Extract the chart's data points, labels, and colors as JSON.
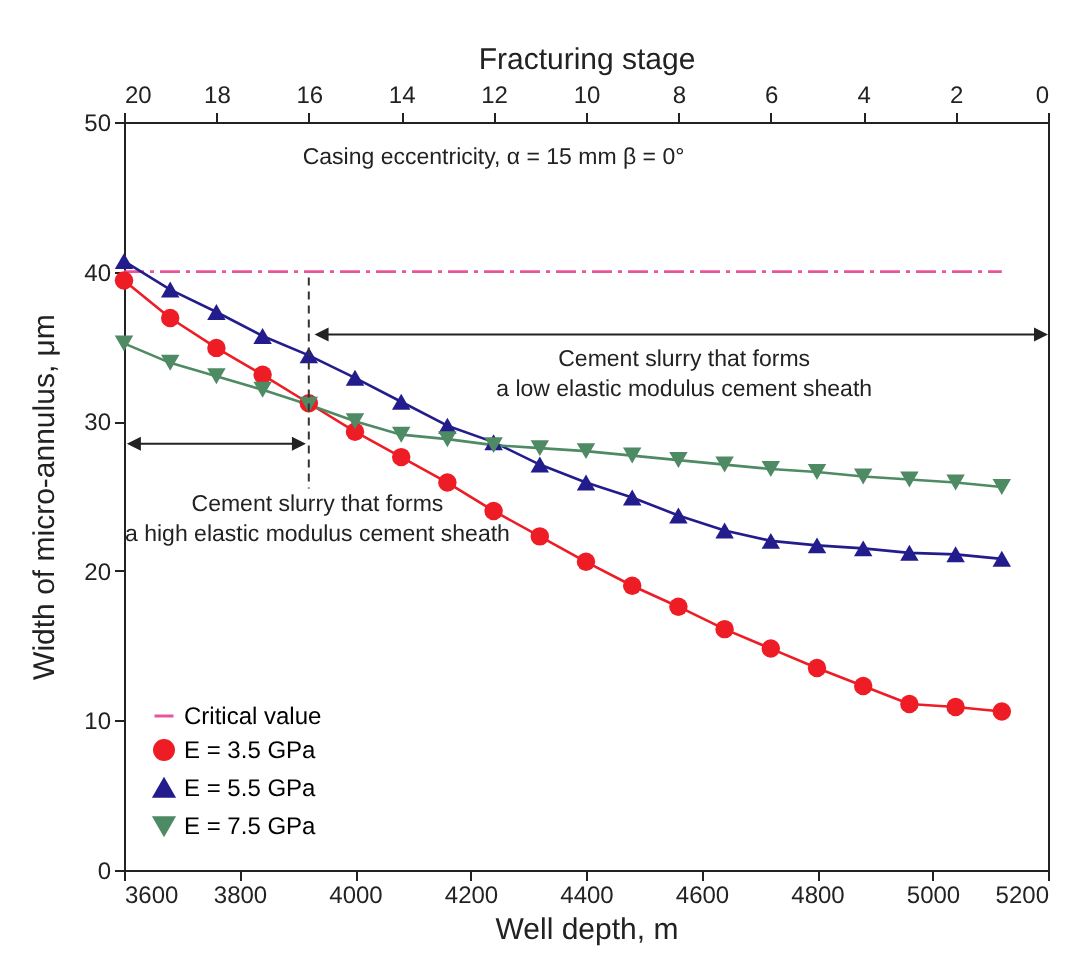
{
  "chart_data": {
    "type": "line",
    "xlabel": "Well depth, m",
    "ylabel": "Width of micro-annulus, μm",
    "x2label": "Fracturing stage",
    "xlim": [
      3600,
      5200
    ],
    "xticks": [
      3600,
      3800,
      4000,
      4200,
      4400,
      4600,
      4800,
      5000,
      5200
    ],
    "ylim": [
      0,
      50
    ],
    "yticks": [
      0,
      10,
      20,
      30,
      40,
      50
    ],
    "x2lim": [
      20,
      0
    ],
    "x2ticks": [
      20,
      18,
      16,
      14,
      12,
      10,
      8,
      6,
      4,
      2,
      0
    ],
    "x": [
      3600,
      3680,
      3760,
      3840,
      3920,
      4000,
      4080,
      4160,
      4240,
      4320,
      4400,
      4480,
      4560,
      4640,
      4720,
      4800,
      4880,
      4960,
      5040,
      5120
    ],
    "grid": false,
    "ref_lines": [
      {
        "axis": "x",
        "value": 3920,
        "color": "#333333",
        "line_style": "dashed"
      }
    ],
    "legend": "bottom left",
    "series": [
      {
        "name": "Critical value",
        "color": "#e8559a",
        "type": "line",
        "marker": "none",
        "line_style": "dashed",
        "x": [
          3600,
          5120
        ],
        "values": [
          40,
          40
        ]
      },
      {
        "name": "E = 3.5 GPa",
        "color": "#ee1c25",
        "marker": "circle",
        "values": [
          39.4,
          36.9,
          34.9,
          33.1,
          31.2,
          29.3,
          27.6,
          25.9,
          24.0,
          22.3,
          20.6,
          19.0,
          17.6,
          16.1,
          14.8,
          13.5,
          12.3,
          11.1,
          10.9,
          10.6
        ]
      },
      {
        "name": "E = 5.5 GPa",
        "color": "#231c8c",
        "marker": "triangle",
        "values": [
          40.7,
          38.8,
          37.3,
          35.7,
          34.4,
          32.9,
          31.3,
          29.7,
          28.6,
          27.1,
          25.9,
          24.9,
          23.7,
          22.7,
          22.0,
          21.7,
          21.5,
          21.2,
          21.1,
          20.8
        ]
      },
      {
        "name": "E = 7.5 GPa",
        "color": "#4e8a63",
        "marker": "triangle-down",
        "values": [
          35.2,
          33.9,
          33.0,
          32.1,
          31.1,
          30.0,
          29.1,
          28.8,
          28.4,
          28.2,
          28.0,
          27.7,
          27.4,
          27.1,
          26.8,
          26.6,
          26.3,
          26.1,
          25.9,
          25.6
        ]
      }
    ],
    "annotations": [
      "Casing eccentricity, α = 15 mm β = 0°",
      "Cement slurry that forms\na low elastic modulus cement sheath",
      "Cement slurry that forms\na high elastic modulus cement sheath"
    ]
  }
}
